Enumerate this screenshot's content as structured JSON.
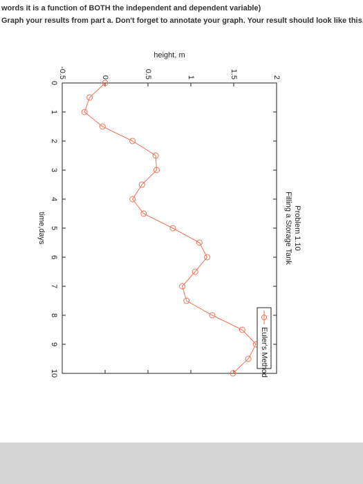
{
  "instructions": [
    "words it is a function of BOTH the independent and dependent variable)",
    "Graph your results from part a. Don't forget to annotate your graph. Your result should look like this."
  ],
  "chart_data": {
    "type": "line",
    "title": "Problem 1.10",
    "subtitle": "Filling a Storage Tank",
    "x_label": "time,days",
    "y_label": "height, m",
    "x": [
      0,
      0.5,
      1,
      1.5,
      2,
      2.5,
      3,
      3.5,
      4,
      4.5,
      5,
      5.5,
      6,
      6.5,
      7,
      7.5,
      8,
      8.5,
      9,
      9.5,
      10
    ],
    "series": [
      {
        "name": "Euler's Method",
        "color": "#f07050",
        "values": [
          0,
          -0.18,
          -0.24,
          -0.03,
          0.32,
          0.59,
          0.6,
          0.43,
          0.32,
          0.45,
          0.79,
          1.1,
          1.19,
          1.05,
          0.9,
          0.95,
          1.25,
          1.6,
          1.76,
          1.67,
          1.49
        ]
      }
    ],
    "xlim": [
      0,
      10
    ],
    "xticks": [
      0,
      1,
      2,
      3,
      4,
      5,
      6,
      7,
      8,
      9,
      10
    ],
    "ylim": [
      -0.5,
      2
    ],
    "yticks": [
      -0.5,
      0,
      0.5,
      1,
      1.5,
      2
    ],
    "grid": false,
    "legend": "upper right",
    "markers": "circle"
  }
}
